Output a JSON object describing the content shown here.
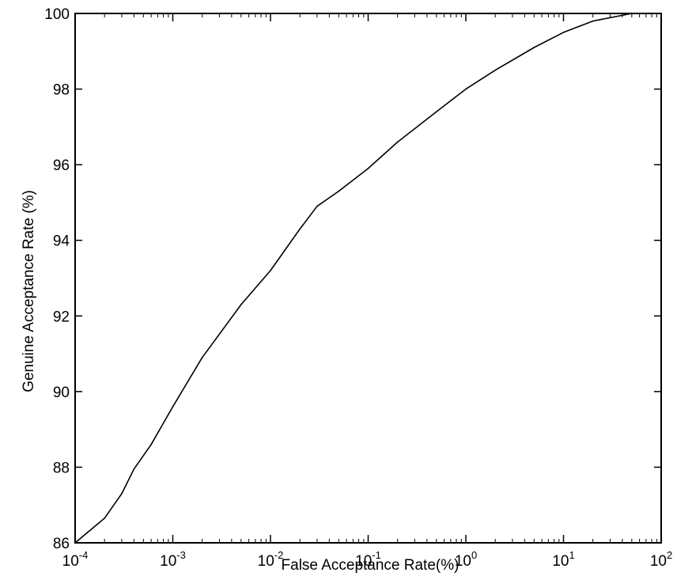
{
  "chart_data": {
    "type": "line",
    "title": "",
    "xlabel": "False Acceptance Rate(%)",
    "ylabel": "Genuine Acceptance Rate (%)",
    "x_scale": "log",
    "xlim": [
      0.0001,
      100
    ],
    "ylim": [
      86,
      100
    ],
    "grid": false,
    "x_ticks": [
      {
        "value": 0.0001,
        "base": "10",
        "exp": "-4"
      },
      {
        "value": 0.001,
        "base": "10",
        "exp": "-3"
      },
      {
        "value": 0.01,
        "base": "10",
        "exp": "-2"
      },
      {
        "value": 0.1,
        "base": "10",
        "exp": "-1"
      },
      {
        "value": 1,
        "base": "10",
        "exp": "0"
      },
      {
        "value": 10,
        "base": "10",
        "exp": "1"
      },
      {
        "value": 100,
        "base": "10",
        "exp": "2"
      }
    ],
    "y_ticks": [
      {
        "value": 86,
        "label": "86"
      },
      {
        "value": 88,
        "label": "88"
      },
      {
        "value": 90,
        "label": "90"
      },
      {
        "value": 92,
        "label": "92"
      },
      {
        "value": 94,
        "label": "94"
      },
      {
        "value": 96,
        "label": "96"
      },
      {
        "value": 98,
        "label": "98"
      },
      {
        "value": 100,
        "label": "100"
      }
    ],
    "series": [
      {
        "color": "#000000",
        "points": [
          [
            0.0001,
            86.0
          ],
          [
            0.0002,
            86.65
          ],
          [
            0.0003,
            87.3
          ],
          [
            0.0004,
            87.95
          ],
          [
            0.0006,
            88.6
          ],
          [
            0.001,
            89.6
          ],
          [
            0.002,
            90.9
          ],
          [
            0.005,
            92.3
          ],
          [
            0.01,
            93.2
          ],
          [
            0.02,
            94.3
          ],
          [
            0.03,
            94.9
          ],
          [
            0.05,
            95.3
          ],
          [
            0.1,
            95.9
          ],
          [
            0.2,
            96.6
          ],
          [
            0.5,
            97.4
          ],
          [
            1,
            98.0
          ],
          [
            2,
            98.5
          ],
          [
            5,
            99.1
          ],
          [
            10,
            99.5
          ],
          [
            20,
            99.8
          ],
          [
            50,
            100.0
          ],
          [
            100,
            100.0
          ]
        ]
      }
    ]
  }
}
